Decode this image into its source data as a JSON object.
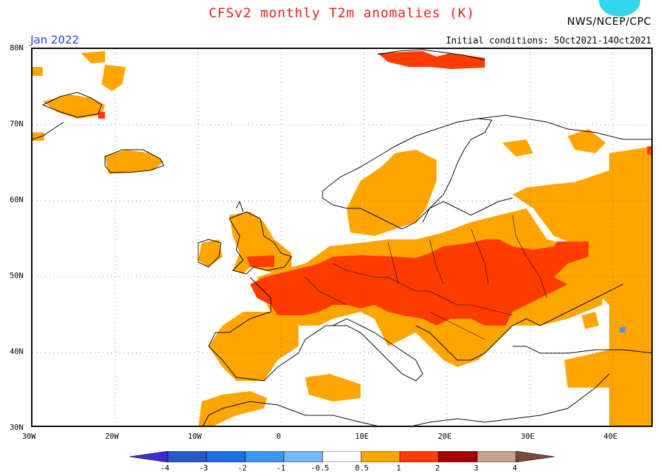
{
  "header": {
    "title": "CFSv2 monthly T2m anomalies (K)",
    "org": "NWS/NCEP/CPC",
    "month": "Jan 2022",
    "initial_conditions": "Initial conditions: 5Oct2021-14Oct2021"
  },
  "axes": {
    "lat_labels": [
      "80N",
      "70N",
      "60N",
      "50N",
      "40N",
      "30N"
    ],
    "lon_labels": [
      "30W",
      "20W",
      "10W",
      "0",
      "10E",
      "20E",
      "30E",
      "40E"
    ]
  },
  "colorbar": {
    "labels": [
      "-4",
      "-3",
      "-2",
      "-1",
      "-0.5",
      "0.5",
      "1",
      "2",
      "3",
      "4"
    ],
    "colors": [
      "#3e2ad2",
      "#2a58c8",
      "#1e6ee6",
      "#3c96f0",
      "#78b8f4",
      "#ffffff",
      "#ffa500",
      "#ff3c00",
      "#a50000",
      "#c8a090",
      "#7a4a38"
    ]
  },
  "colors": {
    "anomaly_1_2": "#ffa500",
    "anomaly_2_3": "#ff3c00",
    "anomaly_neg": "#4f8ff0",
    "title": "#e0201c",
    "month": "#2244dd"
  }
}
